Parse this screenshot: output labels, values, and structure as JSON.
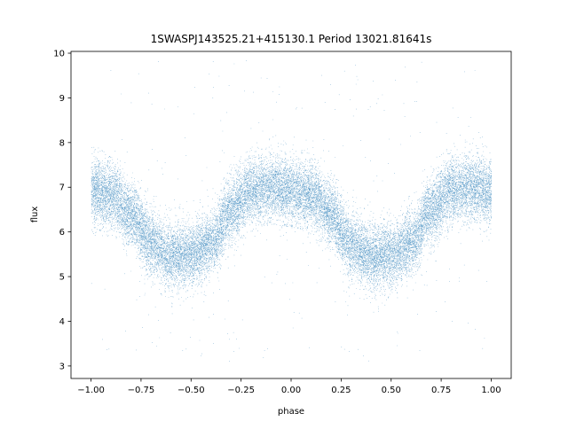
{
  "chart_data": {
    "type": "scatter",
    "title": "1SWASPJ143525.21+415130.1 Period 13021.81641s",
    "xlabel": "phase",
    "ylabel": "flux",
    "xlim": [
      -1.1,
      1.1
    ],
    "ylim": [
      2.72,
      10.04
    ],
    "x_ticks": [
      -1.0,
      -0.75,
      -0.5,
      -0.25,
      0.0,
      0.25,
      0.5,
      0.75,
      1.0
    ],
    "x_tick_labels": [
      "−1.00",
      "−0.75",
      "−0.50",
      "−0.25",
      "0.00",
      "0.25",
      "0.50",
      "0.75",
      "1.00"
    ],
    "y_ticks": [
      3,
      4,
      5,
      6,
      7,
      8,
      9,
      10
    ],
    "y_tick_labels": [
      "3",
      "4",
      "5",
      "6",
      "7",
      "8",
      "9",
      "10"
    ],
    "grid": false,
    "legend": "none",
    "marker_color": "#1f77b4",
    "series": [
      {
        "phase_range": [
          -1.0,
          1.0
        ],
        "light_curve": {
          "x": [
            -1.0,
            -0.9,
            -0.8,
            -0.7,
            -0.6,
            -0.5,
            -0.4,
            -0.3,
            -0.2,
            -0.1,
            0.0,
            0.1,
            0.2,
            0.3,
            0.4,
            0.5,
            0.6,
            0.7,
            0.8,
            0.9,
            1.0
          ],
          "y": [
            6.95,
            6.85,
            6.4,
            5.75,
            5.45,
            5.5,
            5.75,
            6.5,
            6.95,
            7.0,
            6.9,
            6.85,
            6.4,
            5.7,
            5.45,
            5.5,
            5.75,
            6.5,
            6.95,
            7.0,
            6.9
          ]
        },
        "scatter_sigma": 0.35,
        "n_points": 26000,
        "outlier_fraction": 0.012,
        "outlier_range": [
          3.1,
          9.9
        ]
      }
    ]
  }
}
